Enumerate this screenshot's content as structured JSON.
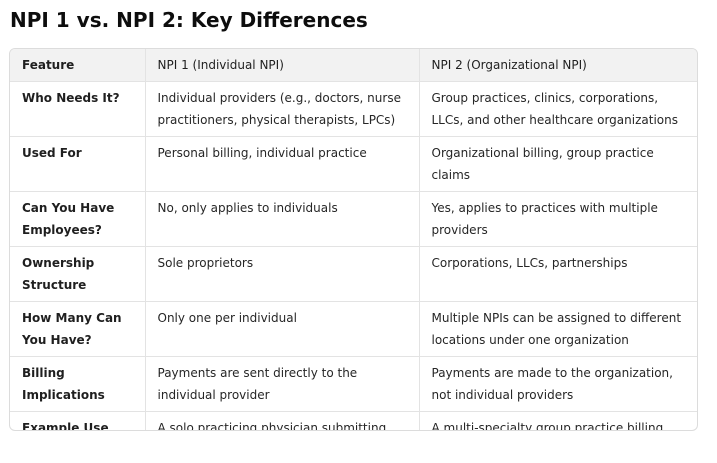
{
  "title": "NPI 1 vs. NPI 2: Key Differences",
  "table": {
    "headers": [
      "Feature",
      "NPI 1 (Individual NPI)",
      "NPI 2 (Organizational NPI)"
    ],
    "rows": [
      {
        "feature": "Who Needs It?",
        "npi1": "Individual providers (e.g., doctors, nurse practitioners, physical therapists, LPCs)",
        "npi2": "Group practices, clinics, corporations, LLCs, and other healthcare organizations"
      },
      {
        "feature": "Used For",
        "npi1": "Personal billing, individual practice",
        "npi2": "Organizational billing, group practice claims"
      },
      {
        "feature": "Can You Have Employees?",
        "npi1": "No, only applies to individuals",
        "npi2": "Yes, applies to practices with multiple providers"
      },
      {
        "feature": "Ownership Structure",
        "npi1": "Sole proprietors",
        "npi2": "Corporations, LLCs, partnerships"
      },
      {
        "feature": "How Many Can You Have?",
        "npi1": "Only one per individual",
        "npi2": "Multiple NPIs can be assigned to different locations under one organization"
      },
      {
        "feature": "Billing Implications",
        "npi1": "Payments are sent directly to the individual provider",
        "npi2": "Payments are made to the organization, not individual providers"
      },
      {
        "feature": "Example Use Case",
        "npi1": "A solo practicing physician submitting claims under their own SSN",
        "npi2": "A multi-specialty group practice billing under a corporate Tax ID (EIN)"
      }
    ]
  }
}
